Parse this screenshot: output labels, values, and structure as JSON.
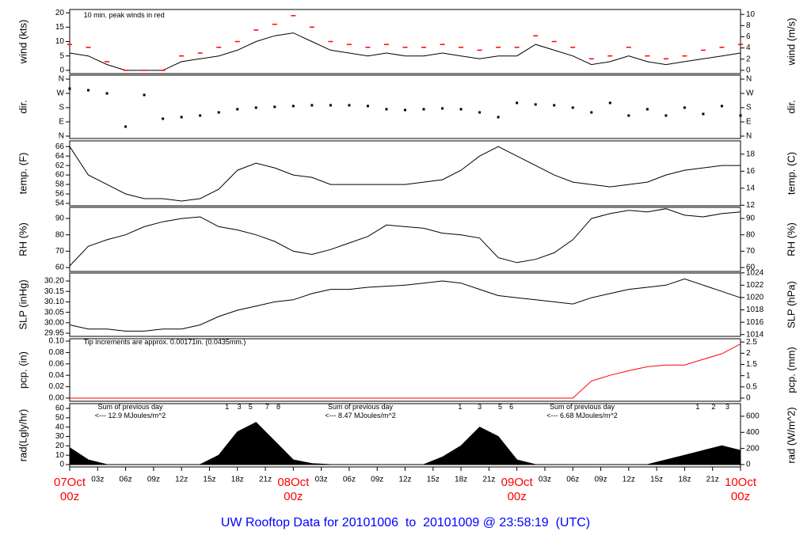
{
  "footer": "UW Rooftop Data for 20101006  to  20101009 @ 23:58:19  (UTC)",
  "chart_data": [
    {
      "type": "line",
      "ylabel": "wind (kts)",
      "y2label": "wind (m/s)",
      "xlim": [
        0,
        72
      ],
      "ylim": [
        -1.14,
        21.14
      ],
      "yticks": [
        0,
        5,
        10,
        15,
        20
      ],
      "y2lim": [
        -0.59,
        10.88
      ],
      "y2ticks": [
        0,
        2,
        4,
        6,
        8,
        10
      ],
      "annotations": [
        {
          "text": "10 min. peak winds in red",
          "x": 1.5,
          "y": 19,
          "color": "#ff0000"
        }
      ],
      "x": [
        0,
        2,
        4,
        6,
        8,
        10,
        12,
        14,
        16,
        18,
        20,
        22,
        24,
        26,
        28,
        30,
        32,
        34,
        36,
        38,
        40,
        42,
        44,
        46,
        48,
        50,
        52,
        54,
        56,
        58,
        60,
        62,
        64,
        66,
        68,
        70,
        72
      ],
      "series": [
        {
          "color": "#000000",
          "mark": "line",
          "values": [
            6,
            5,
            2,
            0,
            0,
            0,
            3,
            4,
            5,
            7,
            10,
            12,
            13,
            10,
            7,
            6,
            5,
            6,
            5,
            5,
            6,
            5,
            4,
            5,
            5,
            9,
            7,
            5,
            2,
            3,
            5,
            3,
            2,
            3,
            4,
            5,
            6
          ]
        },
        {
          "color": "#ff0000",
          "mark": "dash",
          "values": [
            9,
            8,
            3,
            0,
            0,
            0,
            5,
            6,
            8,
            10,
            14,
            16,
            19,
            15,
            10,
            9,
            8,
            9,
            8,
            8,
            9,
            8,
            7,
            8,
            8,
            12,
            10,
            8,
            4,
            5,
            8,
            5,
            4,
            5,
            7,
            8,
            9
          ]
        }
      ]
    },
    {
      "type": "line",
      "ylabel": "dir.",
      "y2label": "dir.",
      "xlim": [
        0,
        72
      ],
      "ylim": [
        -15,
        385
      ],
      "yticks": [
        {
          "value": 0,
          "label": "N"
        },
        {
          "value": 90,
          "label": "E"
        },
        {
          "value": 180,
          "label": "S"
        },
        {
          "value": 270,
          "label": "W"
        },
        {
          "value": 360,
          "label": "N"
        }
      ],
      "y2lim": [
        -15,
        385
      ],
      "y2ticks": [
        {
          "value": 0,
          "label": "N"
        },
        {
          "value": 90,
          "label": "E"
        },
        {
          "value": 180,
          "label": "S"
        },
        {
          "value": 270,
          "label": "W"
        },
        {
          "value": 360,
          "label": "N"
        }
      ],
      "x": [
        0,
        2,
        4,
        6,
        8,
        10,
        12,
        14,
        16,
        18,
        20,
        22,
        24,
        26,
        28,
        30,
        32,
        34,
        36,
        38,
        40,
        42,
        44,
        46,
        48,
        50,
        52,
        54,
        56,
        58,
        60,
        62,
        64,
        66,
        68,
        70,
        72
      ],
      "series": [
        {
          "color": "#000000",
          "mark": "dot",
          "values": [
            300,
            290,
            270,
            60,
            260,
            110,
            120,
            130,
            150,
            170,
            180,
            185,
            190,
            195,
            195,
            195,
            190,
            170,
            165,
            170,
            175,
            170,
            150,
            120,
            210,
            200,
            195,
            180,
            150,
            210,
            130,
            170,
            130,
            180,
            140,
            190,
            130
          ]
        }
      ]
    },
    {
      "type": "line",
      "ylabel": "temp. (F)",
      "y2label": "temp. (C)",
      "xlim": [
        0,
        72
      ],
      "ylim": [
        53.5,
        67.2
      ],
      "yticks": [
        54,
        56,
        58,
        60,
        62,
        64,
        66
      ],
      "y2lim": [
        11.94,
        19.56
      ],
      "y2ticks": [
        12,
        14,
        16,
        18
      ],
      "x": [
        0,
        2,
        4,
        6,
        8,
        10,
        12,
        14,
        16,
        18,
        20,
        22,
        24,
        26,
        28,
        30,
        32,
        34,
        36,
        38,
        40,
        42,
        44,
        46,
        48,
        50,
        52,
        54,
        56,
        58,
        60,
        62,
        64,
        66,
        68,
        70,
        72
      ],
      "series": [
        {
          "color": "#000000",
          "mark": "line",
          "values": [
            66,
            60,
            58,
            56,
            55,
            55,
            54.5,
            55,
            57,
            61,
            62.5,
            61.5,
            60,
            59.5,
            58,
            58,
            58,
            58,
            58,
            58.5,
            59,
            61,
            64,
            66,
            64,
            62,
            60,
            58.5,
            58,
            57.5,
            58,
            58.5,
            60,
            61,
            61.5,
            62,
            62
          ]
        }
      ]
    },
    {
      "type": "line",
      "ylabel": "RH (%)",
      "y2label": "RH (%)",
      "xlim": [
        0,
        72
      ],
      "ylim": [
        57.6,
        96.8
      ],
      "yticks": [
        60,
        70,
        80,
        90
      ],
      "y2lim": [
        57.6,
        96.8
      ],
      "y2ticks": [
        60,
        70,
        80,
        90
      ],
      "x": [
        0,
        2,
        4,
        6,
        8,
        10,
        12,
        14,
        16,
        18,
        20,
        22,
        24,
        26,
        28,
        30,
        32,
        34,
        36,
        38,
        40,
        42,
        44,
        46,
        48,
        50,
        52,
        54,
        56,
        58,
        60,
        62,
        64,
        66,
        68,
        70,
        72
      ],
      "series": [
        {
          "color": "#000000",
          "mark": "line",
          "values": [
            61,
            73,
            77,
            80,
            85,
            88,
            90,
            91,
            85,
            83,
            80,
            76,
            70,
            68,
            71,
            75,
            79,
            86,
            85,
            84,
            81,
            80,
            78,
            66,
            63,
            65,
            69,
            77,
            90,
            93,
            95,
            94,
            96,
            92,
            91,
            93,
            94
          ]
        }
      ]
    },
    {
      "type": "line",
      "ylabel": "SLP (inHg)",
      "y2label": "SLP (hPa)",
      "xlim": [
        0,
        72
      ],
      "ylim": [
        29.935,
        30.238
      ],
      "yticks": [
        29.95,
        {
          "value": 30,
          "label": "30.00"
        },
        30.05,
        {
          "value": 30.1,
          "label": "30.10"
        },
        30.15,
        {
          "value": 30.2,
          "label": "30.20"
        }
      ],
      "y2lim": [
        1013.71,
        1023.97
      ],
      "y2ticks": [
        1014,
        1016,
        1018,
        1020,
        1022,
        1024
      ],
      "x": [
        0,
        2,
        4,
        6,
        8,
        10,
        12,
        14,
        16,
        18,
        20,
        22,
        24,
        26,
        28,
        30,
        32,
        34,
        36,
        38,
        40,
        42,
        44,
        46,
        48,
        50,
        52,
        54,
        56,
        58,
        60,
        62,
        64,
        66,
        68,
        70,
        72
      ],
      "series": [
        {
          "color": "#000000",
          "mark": "line",
          "values": [
            29.99,
            29.97,
            29.97,
            29.96,
            29.96,
            29.97,
            29.97,
            29.99,
            30.03,
            30.06,
            30.08,
            30.1,
            30.11,
            30.14,
            30.16,
            30.16,
            30.17,
            30.175,
            30.18,
            30.19,
            30.2,
            30.19,
            30.16,
            30.13,
            30.12,
            30.11,
            30.1,
            30.09,
            30.12,
            30.14,
            30.16,
            30.17,
            30.18,
            30.21,
            30.18,
            30.15,
            30.12
          ]
        }
      ]
    },
    {
      "type": "line",
      "ylabel": "pcp. (in)",
      "y2label": "pcp. (mm)",
      "xlim": [
        0,
        72
      ],
      "ylim": [
        -0.0056,
        0.1042
      ],
      "yticks": [
        {
          "value": 0,
          "label": "0.00"
        },
        0.02,
        0.04,
        0.06,
        0.08,
        {
          "value": 0.1,
          "label": "0.10"
        }
      ],
      "y2lim": [
        -0.141,
        2.646
      ],
      "y2ticks": [
        0,
        0.5,
        1,
        1.5,
        2,
        2.5
      ],
      "annotations": [
        {
          "text": "Tip increments are approx. 0.00171in. (0.0435mm.)",
          "x": 1.5,
          "y": 0.098,
          "color": "#ff0000"
        }
      ],
      "x": [
        0,
        2,
        4,
        6,
        8,
        10,
        12,
        14,
        16,
        18,
        20,
        22,
        24,
        26,
        28,
        30,
        32,
        34,
        36,
        38,
        40,
        42,
        44,
        46,
        48,
        50,
        52,
        54,
        56,
        58,
        60,
        62,
        64,
        66,
        68,
        70,
        72
      ],
      "series": [
        {
          "color": "#ff0000",
          "mark": "line",
          "values": [
            0,
            0,
            0,
            0,
            0,
            0,
            0,
            0,
            0,
            0,
            0,
            0,
            0,
            0,
            0,
            0,
            0,
            0,
            0,
            0,
            0,
            0,
            0,
            0,
            0,
            0,
            0,
            0,
            0.03,
            0.04,
            0.048,
            0.055,
            0.058,
            0.058,
            0.068,
            0.078,
            0.095
          ]
        }
      ]
    },
    {
      "type": "line",
      "ylabel": "rad(Lgly/hr)",
      "y2label": "rad (W/m^2)",
      "xlim": [
        0,
        72
      ],
      "ylim": [
        -2.54,
        65.07
      ],
      "yticks": [
        0,
        10,
        20,
        30,
        40,
        50,
        60
      ],
      "y2lim": [
        -29.5,
        756.8
      ],
      "y2ticks": [
        0,
        200,
        400,
        600
      ],
      "xticks": [
        {
          "value": 0,
          "label": "07Oct\n00z"
        },
        {
          "value": 3,
          "label": "03z"
        },
        {
          "value": 6,
          "label": "06z"
        },
        {
          "value": 9,
          "label": "09z"
        },
        {
          "value": 12,
          "label": "12z"
        },
        {
          "value": 15,
          "label": "15z"
        },
        {
          "value": 18,
          "label": "18z"
        },
        {
          "value": 21,
          "label": "21z"
        },
        {
          "value": 24,
          "label": "08Oct\n00z"
        },
        {
          "value": 27,
          "label": "03z"
        },
        {
          "value": 30,
          "label": "06z"
        },
        {
          "value": 33,
          "label": "09z"
        },
        {
          "value": 36,
          "label": "12z"
        },
        {
          "value": 39,
          "label": "15z"
        },
        {
          "value": 42,
          "label": "18z"
        },
        {
          "value": 45,
          "label": "21z"
        },
        {
          "value": 48,
          "label": "09Oct\n00z"
        },
        {
          "value": 51,
          "label": "03z"
        },
        {
          "value": 54,
          "label": "06z"
        },
        {
          "value": 57,
          "label": "09z"
        },
        {
          "value": 60,
          "label": "12z"
        },
        {
          "value": 63,
          "label": "15z"
        },
        {
          "value": 66,
          "label": "18z"
        },
        {
          "value": 69,
          "label": "21z"
        },
        {
          "value": 72,
          "label": "10Oct\n00z"
        }
      ],
      "annotations": [
        {
          "text": "Sum of previous day",
          "x": 6.5,
          "y": 61,
          "color": "#a020f0"
        },
        {
          "text": "<--- 12.9 MJoules/m^2",
          "x": 6.5,
          "y": 52,
          "color": "#a020f0"
        },
        {
          "text": "Sum of previous day",
          "x": 31.2,
          "y": 61,
          "color": "#a020f0"
        },
        {
          "text": "<--- 8.47 MJoules/m^2",
          "x": 31.2,
          "y": 52,
          "color": "#a020f0"
        },
        {
          "text": "Sum of previous day",
          "x": 55,
          "y": 61,
          "color": "#a020f0"
        },
        {
          "text": "<--- 6.68 MJoules/m^2",
          "x": 55,
          "y": 52,
          "color": "#a020f0"
        },
        {
          "text": "1",
          "x": 16.9,
          "y": 61,
          "color": "#a020f0"
        },
        {
          "text": "3",
          "x": 18.2,
          "y": 61,
          "color": "#a020f0"
        },
        {
          "text": "5",
          "x": 19.4,
          "y": 61,
          "color": "#a020f0"
        },
        {
          "text": "7",
          "x": 21.2,
          "y": 61,
          "color": "#a020f0"
        },
        {
          "text": "8",
          "x": 22.4,
          "y": 61,
          "color": "#a020f0"
        },
        {
          "text": "1",
          "x": 41.9,
          "y": 61,
          "color": "#a020f0"
        },
        {
          "text": "3",
          "x": 44.0,
          "y": 61,
          "color": "#a020f0"
        },
        {
          "text": "5",
          "x": 46.2,
          "y": 61,
          "color": "#a020f0"
        },
        {
          "text": "6",
          "x": 47.4,
          "y": 61,
          "color": "#a020f0"
        },
        {
          "text": "1",
          "x": 67.4,
          "y": 61,
          "color": "#a020f0"
        },
        {
          "text": "2",
          "x": 69.1,
          "y": 61,
          "color": "#a020f0"
        },
        {
          "text": "3",
          "x": 70.6,
          "y": 61,
          "color": "#a020f0"
        }
      ],
      "x": [
        0,
        2,
        4,
        6,
        8,
        10,
        12,
        14,
        16,
        18,
        20,
        22,
        24,
        26,
        28,
        30,
        32,
        34,
        36,
        38,
        40,
        42,
        44,
        46,
        48,
        50,
        52,
        54,
        56,
        58,
        60,
        62,
        64,
        66,
        68,
        70,
        72
      ],
      "series": [
        {
          "color": "#000000",
          "mark": "area",
          "values": [
            18,
            5,
            0,
            0,
            0,
            0,
            0,
            0,
            10,
            35,
            45,
            25,
            5,
            1,
            0,
            0,
            0,
            0,
            0,
            0,
            8,
            20,
            40,
            30,
            5,
            0,
            0,
            0,
            0,
            0,
            0,
            0,
            5,
            10,
            15,
            20,
            15
          ]
        }
      ]
    }
  ]
}
